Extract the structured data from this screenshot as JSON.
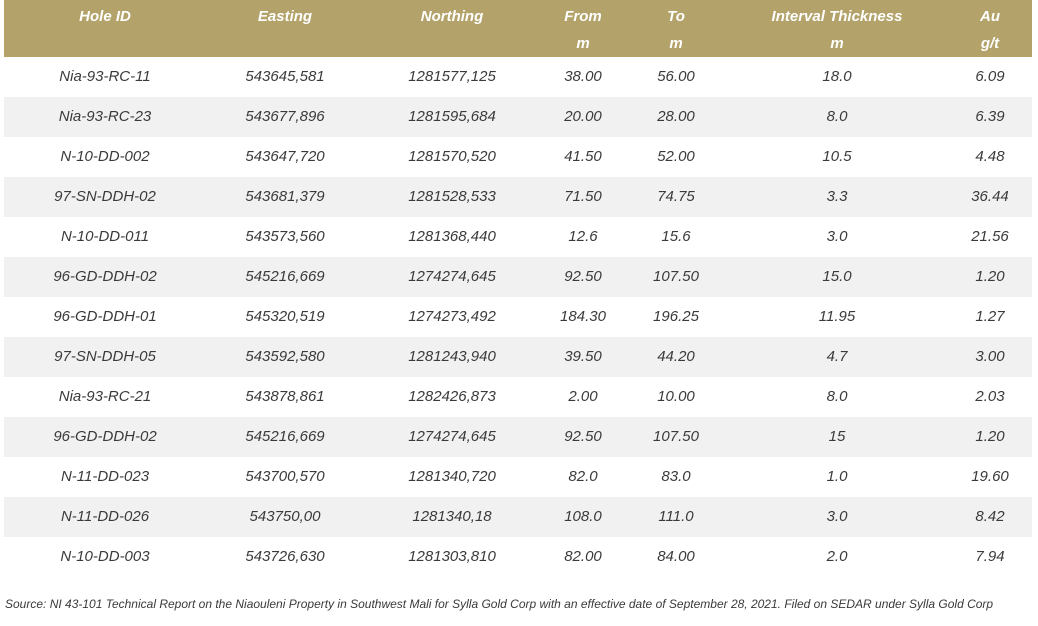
{
  "table": {
    "columns": [
      {
        "label": "Hole ID"
      },
      {
        "label": "Easting"
      },
      {
        "label": "Northing"
      },
      {
        "label": "From",
        "unit": "m"
      },
      {
        "label": "To",
        "unit": "m"
      },
      {
        "label": "Interval Thickness",
        "unit": "m"
      },
      {
        "label": "Au",
        "unit": "g/t"
      }
    ],
    "rows": [
      [
        "Nia-93-RC-11",
        "543645,581",
        "1281577,125",
        "38.00",
        "56.00",
        "18.0",
        "6.09"
      ],
      [
        "Nia-93-RC-23",
        "543677,896",
        "1281595,684",
        "20.00",
        "28.00",
        "8.0",
        "6.39"
      ],
      [
        "N-10-DD-002",
        "543647,720",
        "1281570,520",
        "41.50",
        "52.00",
        "10.5",
        "4.48"
      ],
      [
        "97-SN-DDH-02",
        "543681,379",
        "1281528,533",
        "71.50",
        "74.75",
        "3.3",
        "36.44"
      ],
      [
        "N-10-DD-011",
        "543573,560",
        "1281368,440",
        "12.6",
        "15.6",
        "3.0",
        "21.56"
      ],
      [
        "96-GD-DDH-02",
        "545216,669",
        "1274274,645",
        "92.50",
        "107.50",
        "15.0",
        "1.20"
      ],
      [
        "96-GD-DDH-01",
        "545320,519",
        "1274273,492",
        "184.30",
        "196.25",
        "11.95",
        "1.27"
      ],
      [
        "97-SN-DDH-05",
        "543592,580",
        "1281243,940",
        "39.50",
        "44.20",
        "4.7",
        "3.00"
      ],
      [
        "Nia-93-RC-21",
        "543878,861",
        "1282426,873",
        "2.00",
        "10.00",
        "8.0",
        "2.03"
      ],
      [
        "96-GD-DDH-02",
        "545216,669",
        "1274274,645",
        "92.50",
        "107.50",
        "15",
        "1.20"
      ],
      [
        "N-11-DD-023",
        "543700,570",
        "1281340,720",
        "82.0",
        "83.0",
        "1.0",
        "19.60"
      ],
      [
        "N-11-DD-026",
        "543750,00",
        "1281340,18",
        "108.0",
        "111.0",
        "3.0",
        "8.42"
      ],
      [
        "N-10-DD-003",
        "543726,630",
        "1281303,810",
        "82.00",
        "84.00",
        "2.0",
        "7.94"
      ]
    ]
  },
  "source": "Source: NI 43-101 Technical Report on the Niaouleni Property in Southwest Mali for Sylla Gold Corp with an effective date of September 28, 2021. Filed on SEDAR under Sylla Gold Corp"
}
